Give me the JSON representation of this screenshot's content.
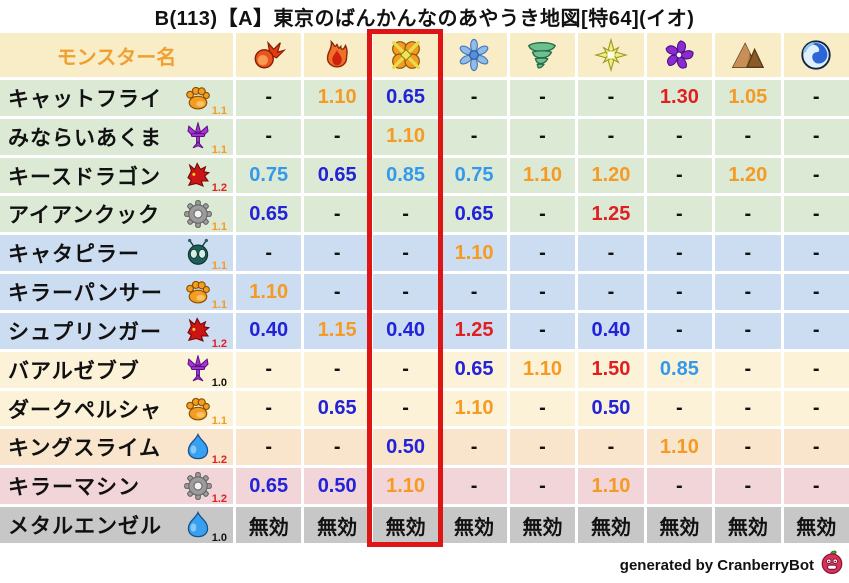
{
  "title": "B(113)【A】東京のばんかんなのあやうき地図[特64](イオ)",
  "header": {
    "name_column": "モンスター名",
    "elements": [
      "fireball",
      "flame",
      "explosion",
      "ice",
      "wind",
      "light",
      "dark",
      "earth",
      "water"
    ]
  },
  "highlight": {
    "column_index": 2,
    "color": "#dd1515"
  },
  "colors": {
    "header_bg": "#f9edc8",
    "header_text": "#f0a030",
    "value_orange": "#f59a23",
    "value_red": "#e02020",
    "value_light_blue": "#3399ec",
    "value_dark_blue": "#2222d8",
    "value_neutral": "#111111",
    "row_groups": {
      "green": "#dcead5",
      "blue": "#cdddf1",
      "cream": "#fcf2d7",
      "peach": "#f8e5cc",
      "pink": "#f2d5d8",
      "gray": "#c7c7c7"
    }
  },
  "rows": [
    {
      "name": "キャットフライ",
      "family": "paw",
      "level": "1.1",
      "group": "green",
      "values": [
        "-",
        "1.10",
        "0.65",
        "-",
        "-",
        "-",
        "1.30",
        "1.05",
        "-"
      ]
    },
    {
      "name": "みならいあくま",
      "family": "trident",
      "level": "1.1",
      "group": "green",
      "values": [
        "-",
        "-",
        "1.10",
        "-",
        "-",
        "-",
        "-",
        "-",
        "-"
      ]
    },
    {
      "name": "キースドラゴン",
      "family": "dragon",
      "level": "1.2",
      "group": "green",
      "values": [
        "0.75",
        "0.65",
        "0.85",
        "0.75",
        "1.10",
        "1.20",
        "-",
        "1.20",
        "-"
      ]
    },
    {
      "name": "アイアンクック",
      "family": "gear",
      "level": "1.1",
      "group": "green",
      "values": [
        "0.65",
        "-",
        "-",
        "0.65",
        "-",
        "1.25",
        "-",
        "-",
        "-"
      ]
    },
    {
      "name": "キャタピラー",
      "family": "bug",
      "level": "1.1",
      "group": "blue",
      "values": [
        "-",
        "-",
        "-",
        "1.10",
        "-",
        "-",
        "-",
        "-",
        "-"
      ]
    },
    {
      "name": "キラーパンサー",
      "family": "paw",
      "level": "1.1",
      "group": "blue",
      "values": [
        "1.10",
        "-",
        "-",
        "-",
        "-",
        "-",
        "-",
        "-",
        "-"
      ]
    },
    {
      "name": "シュプリンガー",
      "family": "dragon",
      "level": "1.2",
      "group": "blue",
      "values": [
        "0.40",
        "1.15",
        "0.40",
        "1.25",
        "-",
        "0.40",
        "-",
        "-",
        "-"
      ]
    },
    {
      "name": "バアルゼブブ",
      "family": "trident",
      "level": "1.0",
      "group": "cream",
      "values": [
        "-",
        "-",
        "-",
        "0.65",
        "1.10",
        "1.50",
        "0.85",
        "-",
        "-"
      ]
    },
    {
      "name": "ダークペルシャ",
      "family": "paw",
      "level": "1.1",
      "group": "cream",
      "values": [
        "-",
        "0.65",
        "-",
        "1.10",
        "-",
        "0.50",
        "-",
        "-",
        "-"
      ]
    },
    {
      "name": "キングスライム",
      "family": "slime",
      "level": "1.2",
      "group": "peach",
      "values": [
        "-",
        "-",
        "0.50",
        "-",
        "-",
        "-",
        "1.10",
        "-",
        "-"
      ]
    },
    {
      "name": "キラーマシン",
      "family": "gear",
      "level": "1.2",
      "group": "pink",
      "values": [
        "0.65",
        "0.50",
        "1.10",
        "-",
        "-",
        "1.10",
        "-",
        "-",
        "-"
      ]
    },
    {
      "name": "メタルエンゼル",
      "family": "slime",
      "level": "1.0",
      "group": "gray",
      "values": [
        "無効",
        "無効",
        "無効",
        "無効",
        "無効",
        "無効",
        "無効",
        "無効",
        "無効"
      ]
    }
  ],
  "immune_label": "無効",
  "footer": {
    "credit": "generated by CranberryBot",
    "mascot": "cranberry-face-icon"
  }
}
